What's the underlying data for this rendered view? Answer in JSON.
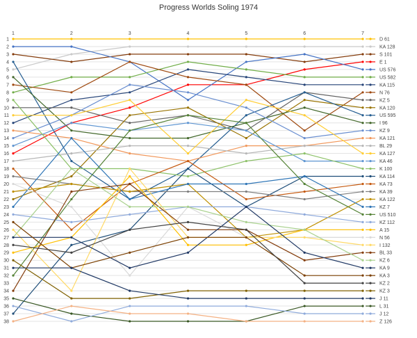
{
  "chart_data": {
    "type": "line",
    "title": "Progress Worlds Soling 1974",
    "xlabel": "",
    "ylabel": "",
    "x": [
      1,
      2,
      3,
      4,
      5,
      6,
      7
    ],
    "ylim": [
      1,
      38
    ],
    "y_ticks": [
      1,
      2,
      3,
      4,
      5,
      6,
      7,
      8,
      9,
      10,
      11,
      12,
      13,
      14,
      15,
      16,
      17,
      18,
      19,
      20,
      21,
      22,
      23,
      24,
      25,
      26,
      27,
      28,
      29,
      30,
      31,
      32,
      33,
      34,
      35,
      36,
      37,
      38
    ],
    "y_reversed": true,
    "grid": true,
    "legend_position": "right",
    "series": [
      {
        "name": "D 61",
        "color": "#ffc000",
        "values": [
          1,
          1,
          1,
          1,
          1,
          1,
          1
        ]
      },
      {
        "name": "KA 128",
        "color": "#c9c9c9",
        "values": [
          5,
          3,
          2,
          2,
          2,
          2,
          2
        ]
      },
      {
        "name": "S 101",
        "color": "#843c0c",
        "values": [
          3,
          4,
          3,
          3,
          3,
          4,
          3
        ]
      },
      {
        "name": "E 1",
        "color": "#ff0000",
        "values": [
          16,
          12,
          10,
          7,
          7,
          5,
          4
        ]
      },
      {
        "name": "US 576",
        "color": "#4472c4",
        "values": [
          2,
          2,
          4,
          9,
          4,
          3,
          5
        ]
      },
      {
        "name": "US 582",
        "color": "#70ad47",
        "values": [
          8,
          6,
          6,
          4,
          5,
          6,
          6
        ]
      },
      {
        "name": "KA 115",
        "color": "#264478",
        "values": [
          12,
          9,
          8,
          5,
          6,
          7,
          7
        ]
      },
      {
        "name": "N 76",
        "color": "#9e480e",
        "values": [
          7,
          8,
          4,
          6,
          7,
          13,
          8
        ]
      },
      {
        "name": "KZ 5",
        "color": "#636363",
        "values": [
          10,
          10,
          12,
          11,
          13,
          8,
          9
        ]
      },
      {
        "name": "KA 120",
        "color": "#997300",
        "values": [
          22,
          19,
          11,
          10,
          14,
          9,
          10
        ]
      },
      {
        "name": "US 595",
        "color": "#255e91",
        "values": [
          4,
          17,
          22,
          18,
          11,
          8,
          11
        ]
      },
      {
        "name": "I 96",
        "color": "#43682b",
        "values": [
          6,
          13,
          14,
          14,
          12,
          10,
          12
        ]
      },
      {
        "name": "KZ 9",
        "color": "#698ed0",
        "values": [
          14,
          11,
          7,
          8,
          10,
          14,
          13
        ]
      },
      {
        "name": "KA 121",
        "color": "#f1975a",
        "values": [
          13,
          14,
          16,
          17,
          15,
          15,
          14
        ]
      },
      {
        "name": "BL 29",
        "color": "#b7b7b7",
        "values": [
          17,
          16,
          15,
          15,
          16,
          15,
          15
        ]
      },
      {
        "name": "KA 127",
        "color": "#ffcd33",
        "values": [
          11,
          11,
          9,
          16,
          9,
          11,
          16
        ]
      },
      {
        "name": "KA 46",
        "color": "#5f96d2",
        "values": [
          15,
          12,
          13,
          12,
          13,
          17,
          17
        ]
      },
      {
        "name": "K 100",
        "color": "#8cc168",
        "values": [
          9,
          18,
          18,
          19,
          17,
          16,
          18
        ]
      },
      {
        "name": "KA 114",
        "color": "#1f4e79",
        "values": [
          37,
          28,
          26,
          18,
          23,
          19,
          19
        ]
      },
      {
        "name": "KA 73",
        "color": "#c55a11",
        "values": [
          18,
          26,
          20,
          17,
          22,
          21,
          20
        ]
      },
      {
        "name": "KA 39",
        "color": "#7f7f7f",
        "values": [
          19,
          20,
          21,
          21,
          21,
          22,
          21
        ]
      },
      {
        "name": "KA 122",
        "color": "#bf9000",
        "values": [
          21,
          20,
          21,
          20,
          27,
          26,
          22
        ]
      },
      {
        "name": "KZ 7",
        "color": "#2e75b6",
        "values": [
          23,
          14,
          22,
          20,
          20,
          19,
          23
        ]
      },
      {
        "name": "US 510",
        "color": "#548235",
        "values": [
          32,
          22,
          13,
          11,
          12,
          20,
          24
        ]
      },
      {
        "name": "KZ 112",
        "color": "#8faadc",
        "values": [
          24,
          25,
          24,
          23,
          23,
          24,
          25
        ]
      },
      {
        "name": "A 15",
        "color": "#ffc000",
        "values": [
          29,
          27,
          19,
          28,
          28,
          26,
          26
        ]
      },
      {
        "name": "N 56",
        "color": "#d9d9d9",
        "values": [
          20,
          23,
          32,
          23,
          27,
          27,
          27
        ]
      },
      {
        "name": "I 132",
        "color": "#ffd966",
        "values": [
          26,
          34,
          18,
          27,
          27,
          27,
          28
        ]
      },
      {
        "name": "BL 33",
        "color": "#833c0b",
        "values": [
          34,
          21,
          20,
          26,
          26,
          30,
          29
        ]
      },
      {
        "name": "KZ 6",
        "color": "#a9d18e",
        "values": [
          27,
          18,
          23,
          23,
          25,
          26,
          30
        ]
      },
      {
        "name": "KA 9",
        "color": "#203864",
        "values": [
          27,
          27,
          31,
          29,
          23,
          29,
          31
        ]
      },
      {
        "name": "KA 3",
        "color": "#7b3f00",
        "values": [
          25,
          31,
          29,
          27,
          27,
          32,
          32
        ]
      },
      {
        "name": "KZ 2",
        "color": "#404040",
        "values": [
          28,
          29,
          26,
          25,
          26,
          33,
          33
        ]
      },
      {
        "name": "KZ 3",
        "color": "#7f6000",
        "values": [
          30,
          35,
          35,
          34,
          34,
          34,
          34
        ]
      },
      {
        "name": "J 11",
        "color": "#1f3864",
        "values": [
          31,
          31,
          34,
          35,
          35,
          35,
          35
        ]
      },
      {
        "name": "L 31",
        "color": "#385723",
        "values": [
          35,
          37,
          38,
          38,
          38,
          36,
          36
        ]
      },
      {
        "name": "J 12",
        "color": "#8eaadb",
        "values": [
          36,
          38,
          36,
          36,
          36,
          37,
          37
        ]
      },
      {
        "name": "Z 126",
        "color": "#f4b183",
        "values": [
          38,
          36,
          37,
          37,
          38,
          38,
          38
        ]
      }
    ]
  }
}
